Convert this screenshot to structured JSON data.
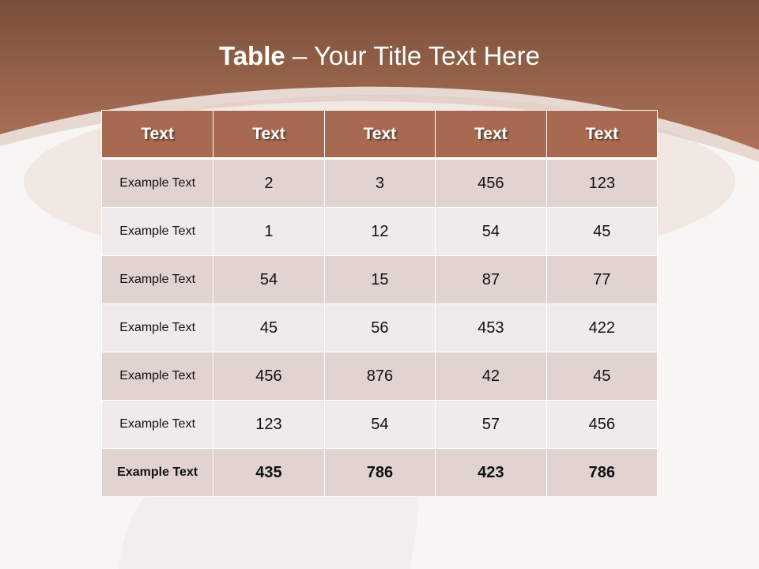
{
  "slide": {
    "title_bold": "Table",
    "title_rest": " – Your Title Text Here",
    "colors": {
      "header": "#a76a50",
      "band_top": "#7a4f3a",
      "band_bottom": "#a87055",
      "row_odd": "#e1d3d0",
      "row_even": "#f0ebe8"
    }
  },
  "table": {
    "headers": [
      "Text",
      "Text",
      "Text",
      "Text",
      "Text"
    ],
    "rows": [
      [
        "Example Text",
        "2",
        "3",
        "456",
        "123"
      ],
      [
        "Example Text",
        "1",
        "12",
        "54",
        "45"
      ],
      [
        "Example Text",
        "54",
        "15",
        "87",
        "77"
      ],
      [
        "Example Text",
        "45",
        "56",
        "453",
        "422"
      ],
      [
        "Example Text",
        "456",
        "876",
        "42",
        "45"
      ],
      [
        "Example Text",
        "123",
        "54",
        "57",
        "456"
      ],
      [
        "Example Text",
        "435",
        "786",
        "423",
        "786"
      ]
    ]
  }
}
